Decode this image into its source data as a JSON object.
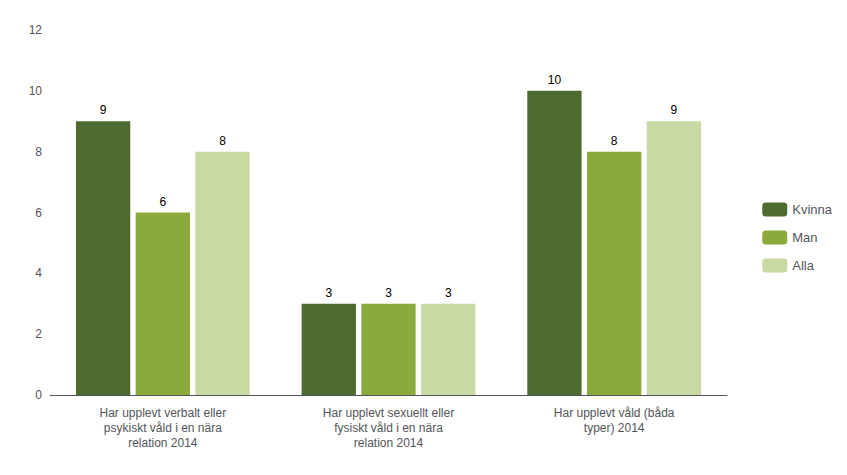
{
  "chart_data": {
    "type": "bar",
    "categories": [
      "Har upplevt verbalt eller\npsykiskt våld i en nära\nrelation 2014",
      "Har upplevt sexuellt eller\nfysiskt våld i en nära\nrelation 2014",
      "Har upplevt våld (båda\ntyper) 2014"
    ],
    "series": [
      {
        "name": "Kvinna",
        "color": "#4d6b2f",
        "values": [
          9,
          3,
          10
        ]
      },
      {
        "name": "Man",
        "color": "#8aab3c",
        "values": [
          6,
          3,
          8
        ]
      },
      {
        "name": "Alla",
        "color": "#c8d9a4",
        "values": [
          8,
          3,
          9
        ]
      }
    ],
    "ylim": [
      0,
      12
    ],
    "yticks": [
      0,
      2,
      4,
      6,
      8,
      10,
      12
    ],
    "grid": false,
    "legend": "right",
    "data_labels": true
  }
}
